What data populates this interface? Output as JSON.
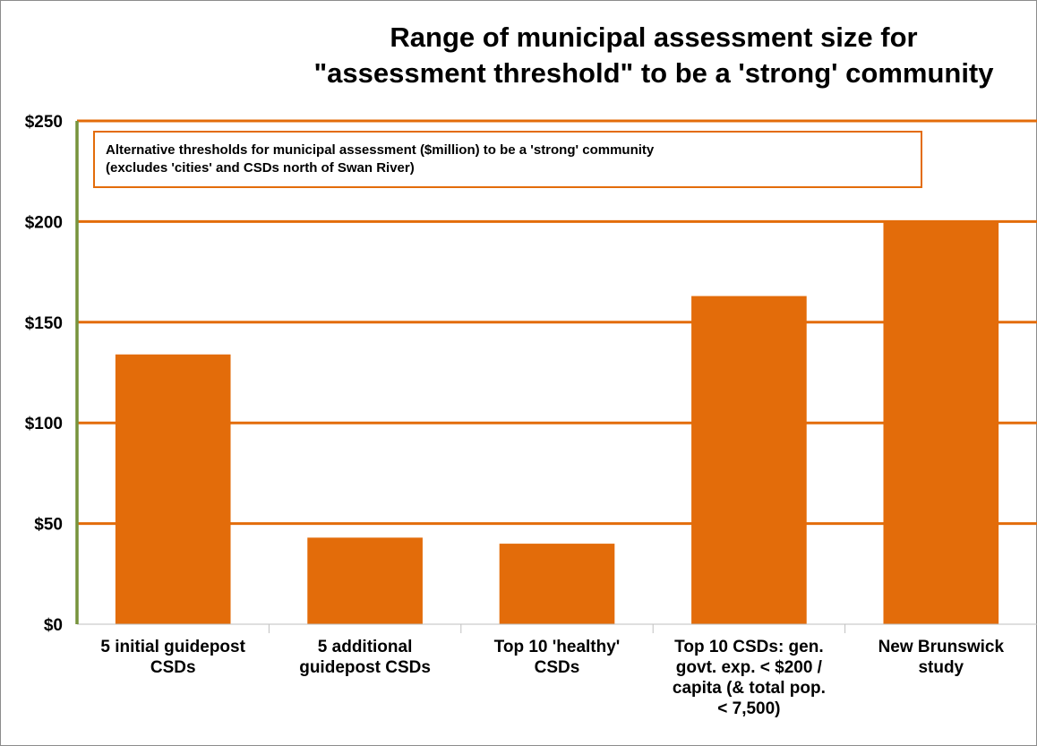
{
  "chart_data": {
    "type": "bar",
    "title": [
      "Range of municipal assessment size for",
      "\"assessment threshold\" to be a 'strong' community"
    ],
    "categories": [
      [
        "5 initial guidepost",
        "CSDs"
      ],
      [
        "5 additional",
        "guidepost CSDs"
      ],
      [
        "Top 10 'healthy'",
        "CSDs"
      ],
      [
        "Top 10 CSDs: gen.",
        "govt. exp. < $200 /",
        "capita (& total pop.",
        "< 7,500)"
      ],
      [
        "New Brunswick",
        "study"
      ]
    ],
    "values": [
      134,
      43,
      40,
      163,
      200
    ],
    "ylim": [
      0,
      250
    ],
    "yticks": [
      0,
      50,
      100,
      150,
      200,
      250
    ],
    "ytick_labels": [
      "$0",
      "$50",
      "$100",
      "$150",
      "$200",
      "$250"
    ],
    "grid": true,
    "colors": {
      "bar": "#e36c0a",
      "gridline": "#e36c0a",
      "y_axis": "#77933c"
    },
    "annotation": [
      "Alternative thresholds for municipal assessment ($million)  to be a 'strong' community",
      "(excludes 'cities' and CSDs north of Swan  River)"
    ]
  }
}
